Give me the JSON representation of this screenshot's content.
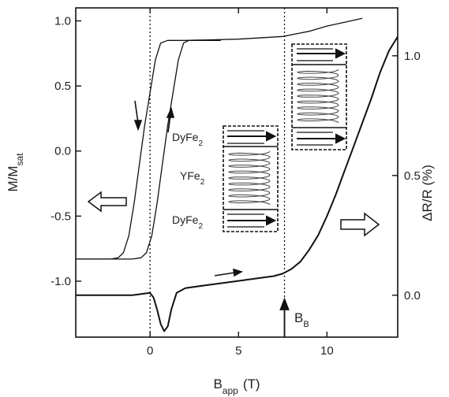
{
  "chart_data": {
    "type": "line",
    "x_axis": {
      "label_main": "B",
      "label_sub": "app",
      "label_unit": "(T)",
      "range": [
        -4.2,
        14
      ],
      "ticks": [
        {
          "value": 0,
          "label": "0"
        },
        {
          "value": 5,
          "label": "5"
        },
        {
          "value": 10,
          "label": "10"
        }
      ]
    },
    "y_left": {
      "label_main": "M/M",
      "label_sub": "sat",
      "range": [
        -1.43,
        1.1
      ],
      "ticks": [
        {
          "value": 1.0,
          "label": "1.0"
        },
        {
          "value": 0.5,
          "label": "0.5"
        },
        {
          "value": 0.0,
          "label": "0.0"
        },
        {
          "value": -0.5,
          "label": "-0.5"
        },
        {
          "value": -1.0,
          "label": "-1.0"
        }
      ]
    },
    "y_right": {
      "label": "ΔR/R  (%)",
      "range": [
        -0.175,
        1.2
      ],
      "ticks": [
        {
          "value": 1.0,
          "label": "1.0"
        },
        {
          "value": 0.5,
          "label": "0.5"
        },
        {
          "value": 0.0,
          "label": "0.0"
        }
      ]
    },
    "series": [
      {
        "axis": "left",
        "points": [
          [
            -4.2,
            -0.83
          ],
          [
            -2.2,
            -0.83
          ],
          [
            -1.8,
            -0.82
          ],
          [
            -1.5,
            -0.78
          ],
          [
            -1.2,
            -0.65
          ],
          [
            -0.9,
            -0.4
          ],
          [
            -0.6,
            -0.1
          ],
          [
            -0.3,
            0.2
          ],
          [
            0,
            0.45
          ],
          [
            0.3,
            0.7
          ],
          [
            0.6,
            0.83
          ],
          [
            1.0,
            0.85
          ],
          [
            2,
            0.85
          ],
          [
            5,
            0.86
          ],
          [
            7.5,
            0.88
          ],
          [
            9,
            0.92
          ],
          [
            10,
            0.96
          ],
          [
            11,
            0.99
          ],
          [
            12,
            1.02
          ]
        ]
      },
      {
        "axis": "left",
        "points": [
          [
            -4.2,
            -0.83
          ],
          [
            -1.0,
            -0.83
          ],
          [
            -0.5,
            -0.82
          ],
          [
            -0.2,
            -0.78
          ],
          [
            0.1,
            -0.65
          ],
          [
            0.4,
            -0.4
          ],
          [
            0.7,
            -0.1
          ],
          [
            1.0,
            0.2
          ],
          [
            1.3,
            0.45
          ],
          [
            1.6,
            0.7
          ],
          [
            1.9,
            0.83
          ],
          [
            2.2,
            0.85
          ],
          [
            4,
            0.85
          ]
        ]
      },
      {
        "axis": "right",
        "points": [
          [
            -4.2,
            0.0
          ],
          [
            -2,
            0.0
          ],
          [
            -1,
            0.0
          ],
          [
            0,
            0.01
          ],
          [
            0.2,
            -0.01
          ],
          [
            0.4,
            -0.06
          ],
          [
            0.6,
            -0.12
          ],
          [
            0.8,
            -0.15
          ],
          [
            1.0,
            -0.13
          ],
          [
            1.2,
            -0.06
          ],
          [
            1.5,
            0.01
          ],
          [
            2,
            0.03
          ],
          [
            3,
            0.04
          ],
          [
            4,
            0.05
          ],
          [
            5,
            0.06
          ],
          [
            6,
            0.07
          ],
          [
            7,
            0.08
          ],
          [
            7.5,
            0.09
          ],
          [
            8,
            0.11
          ],
          [
            8.5,
            0.14
          ],
          [
            9,
            0.19
          ],
          [
            9.5,
            0.25
          ],
          [
            10,
            0.33
          ],
          [
            10.5,
            0.42
          ],
          [
            11,
            0.52
          ],
          [
            11.5,
            0.62
          ],
          [
            12,
            0.72
          ],
          [
            12.5,
            0.82
          ],
          [
            13,
            0.93
          ],
          [
            13.5,
            1.02
          ],
          [
            14,
            1.08
          ]
        ]
      }
    ],
    "dotted_lines_x": [
      0,
      7.6
    ],
    "annotations": {
      "b_marker_main": "B",
      "b_marker_sub": "B",
      "b_marker_x": 7.6
    },
    "inset": {
      "layers": [
        {
          "name": "DyFe",
          "sub": "2"
        },
        {
          "name": "YFe",
          "sub": "2"
        },
        {
          "name": "DyFe",
          "sub": "2"
        }
      ]
    },
    "grid": false
  }
}
